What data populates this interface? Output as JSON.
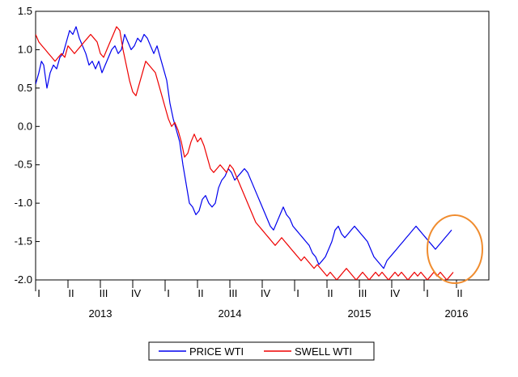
{
  "chart_data": {
    "type": "line",
    "title": "",
    "xlabel": "",
    "ylabel": "",
    "ylim": [
      -2.0,
      1.5
    ],
    "yticks": [
      "1.5",
      "1.0",
      "0.5",
      "0.0",
      "-0.5",
      "-1.0",
      "-1.5",
      "-2.0"
    ],
    "x_range": [
      "2013 Q1",
      "2016 Q2"
    ],
    "quarter_labels": [
      "I",
      "II",
      "III",
      "IV",
      "I",
      "II",
      "III",
      "IV",
      "I",
      "II",
      "III",
      "IV",
      "I",
      "II"
    ],
    "year_labels": [
      "2013",
      "2014",
      "2015",
      "2016"
    ],
    "grid": false,
    "legend_position": "bottom-center",
    "series": [
      {
        "name": "PRICE WTI",
        "color": "#0000ee",
        "x": [
          0.0,
          0.1,
          0.18,
          0.25,
          0.35,
          0.45,
          0.55,
          0.65,
          0.75,
          0.85,
          0.95,
          1.05,
          1.15,
          1.25,
          1.35,
          1.45,
          1.55,
          1.65,
          1.75,
          1.85,
          1.95,
          2.05,
          2.15,
          2.25,
          2.35,
          2.45,
          2.55,
          2.65,
          2.75,
          2.85,
          2.95,
          3.05,
          3.15,
          3.25,
          3.35,
          3.45,
          3.55,
          3.65,
          3.75,
          3.85,
          3.95,
          4.05,
          4.15,
          4.25,
          4.35,
          4.45,
          4.55,
          4.65,
          4.75,
          4.85,
          4.95,
          5.05,
          5.15,
          5.25,
          5.35,
          5.45,
          5.55,
          5.65,
          5.75,
          5.85,
          5.95,
          6.05,
          6.15,
          6.25,
          6.35,
          6.45,
          6.55,
          6.65,
          6.75,
          6.85,
          6.95,
          7.05,
          7.15,
          7.25,
          7.35,
          7.45,
          7.55,
          7.65,
          7.75,
          7.85,
          7.95,
          8.05,
          8.15,
          8.25,
          8.35,
          8.45,
          8.55,
          8.65,
          8.75,
          8.85,
          8.95,
          9.05,
          9.15,
          9.25,
          9.35,
          9.45,
          9.55,
          9.65,
          9.75,
          9.85,
          9.95,
          10.05,
          10.15,
          10.25,
          10.35,
          10.45,
          10.55,
          10.65,
          10.75,
          10.85,
          10.95,
          11.05,
          11.15,
          11.25,
          11.35,
          11.45,
          11.55,
          11.65,
          11.75,
          11.85,
          11.95,
          12.05,
          12.15,
          12.25,
          12.35,
          12.45,
          12.55,
          12.65,
          12.75,
          12.85
        ],
        "values": [
          0.55,
          0.7,
          0.85,
          0.8,
          0.5,
          0.7,
          0.8,
          0.75,
          0.9,
          0.95,
          1.1,
          1.25,
          1.2,
          1.3,
          1.15,
          1.05,
          0.95,
          0.8,
          0.85,
          0.75,
          0.85,
          0.7,
          0.8,
          0.9,
          1.0,
          1.05,
          0.95,
          1.0,
          1.2,
          1.1,
          1.0,
          1.05,
          1.15,
          1.1,
          1.2,
          1.15,
          1.05,
          0.95,
          1.05,
          0.9,
          0.75,
          0.6,
          0.3,
          0.1,
          -0.05,
          -0.2,
          -0.5,
          -0.75,
          -1.0,
          -1.05,
          -1.15,
          -1.1,
          -0.95,
          -0.9,
          -1.0,
          -1.05,
          -1.0,
          -0.8,
          -0.7,
          -0.65,
          -0.55,
          -0.6,
          -0.7,
          -0.65,
          -0.6,
          -0.55,
          -0.6,
          -0.7,
          -0.8,
          -0.9,
          -1.0,
          -1.1,
          -1.2,
          -1.3,
          -1.35,
          -1.25,
          -1.15,
          -1.05,
          -1.15,
          -1.2,
          -1.3,
          -1.35,
          -1.4,
          -1.45,
          -1.5,
          -1.55,
          -1.65,
          -1.7,
          -1.8,
          -1.75,
          -1.7,
          -1.6,
          -1.5,
          -1.35,
          -1.3,
          -1.4,
          -1.45,
          -1.4,
          -1.35,
          -1.3,
          -1.35,
          -1.4,
          -1.45,
          -1.5,
          -1.6,
          -1.7,
          -1.75,
          -1.8,
          -1.85,
          -1.75,
          -1.7,
          -1.65,
          -1.6,
          -1.55,
          -1.5,
          -1.45,
          -1.4,
          -1.35,
          -1.3,
          -1.35,
          -1.4,
          -1.45,
          -1.5,
          -1.55,
          -1.6,
          -1.55,
          -1.5,
          -1.45,
          -1.4,
          -1.35
        ],
        "values_note": "approximate trace read from the figure"
      },
      {
        "name": "SWELL WTI",
        "color": "#ee0000",
        "x": [
          0.0,
          0.1,
          0.2,
          0.3,
          0.4,
          0.5,
          0.6,
          0.7,
          0.8,
          0.9,
          1.0,
          1.1,
          1.2,
          1.3,
          1.4,
          1.5,
          1.6,
          1.7,
          1.8,
          1.9,
          2.0,
          2.1,
          2.2,
          2.3,
          2.4,
          2.5,
          2.6,
          2.7,
          2.8,
          2.9,
          3.0,
          3.1,
          3.2,
          3.3,
          3.4,
          3.5,
          3.6,
          3.7,
          3.8,
          3.9,
          4.0,
          4.1,
          4.2,
          4.3,
          4.4,
          4.5,
          4.6,
          4.7,
          4.8,
          4.9,
          5.0,
          5.1,
          5.2,
          5.3,
          5.4,
          5.5,
          5.6,
          5.7,
          5.8,
          5.9,
          6.0,
          6.1,
          6.2,
          6.3,
          6.4,
          6.5,
          6.6,
          6.7,
          6.8,
          6.9,
          7.0,
          7.1,
          7.2,
          7.3,
          7.4,
          7.5,
          7.6,
          7.7,
          7.8,
          7.9,
          8.0,
          8.1,
          8.2,
          8.3,
          8.4,
          8.5,
          8.6,
          8.7,
          8.8,
          8.9,
          9.0,
          9.1,
          9.2,
          9.3,
          9.4,
          9.5,
          9.6,
          9.7,
          9.8,
          9.9,
          10.0,
          10.1,
          10.2,
          10.3,
          10.4,
          10.5,
          10.6,
          10.7,
          10.8,
          10.9,
          11.0,
          11.1,
          11.2,
          11.3,
          11.4,
          11.5,
          11.6,
          11.7,
          11.8,
          11.9,
          12.0,
          12.1,
          12.2,
          12.3,
          12.4,
          12.5,
          12.6,
          12.7,
          12.8,
          12.9
        ],
        "values": [
          1.2,
          1.1,
          1.05,
          1.0,
          0.95,
          0.9,
          0.85,
          0.9,
          0.95,
          0.9,
          1.05,
          1.0,
          0.95,
          1.0,
          1.05,
          1.1,
          1.15,
          1.2,
          1.15,
          1.1,
          0.95,
          0.9,
          1.0,
          1.1,
          1.2,
          1.3,
          1.25,
          1.0,
          0.8,
          0.6,
          0.45,
          0.4,
          0.55,
          0.7,
          0.85,
          0.8,
          0.75,
          0.7,
          0.55,
          0.4,
          0.25,
          0.1,
          0.0,
          0.05,
          -0.05,
          -0.2,
          -0.4,
          -0.35,
          -0.2,
          -0.1,
          -0.2,
          -0.15,
          -0.25,
          -0.4,
          -0.55,
          -0.6,
          -0.55,
          -0.5,
          -0.55,
          -0.6,
          -0.5,
          -0.55,
          -0.65,
          -0.75,
          -0.85,
          -0.95,
          -1.05,
          -1.15,
          -1.25,
          -1.3,
          -1.35,
          -1.4,
          -1.45,
          -1.5,
          -1.55,
          -1.5,
          -1.45,
          -1.5,
          -1.55,
          -1.6,
          -1.65,
          -1.7,
          -1.75,
          -1.7,
          -1.75,
          -1.8,
          -1.85,
          -1.8,
          -1.85,
          -1.9,
          -1.95,
          -1.9,
          -1.95,
          -2.0,
          -1.95,
          -1.9,
          -1.85,
          -1.9,
          -1.95,
          -2.0,
          -1.95,
          -1.9,
          -1.95,
          -2.0,
          -1.95,
          -1.9,
          -1.95,
          -1.9,
          -1.95,
          -2.0,
          -1.95,
          -1.9,
          -1.95,
          -1.9,
          -1.95,
          -2.0,
          -1.95,
          -1.9,
          -1.95,
          -1.9,
          -1.95,
          -2.0,
          -1.95,
          -1.9,
          -1.95,
          -1.9,
          -1.95,
          -2.0,
          -1.95,
          -1.9
        ],
        "values_note": "approximate trace read from the figure"
      }
    ],
    "annotation": {
      "shape": "ellipse",
      "color": "#f08c2e",
      "description": "highlight around the final values"
    }
  },
  "legend": {
    "items": [
      {
        "label": "PRICE WTI",
        "color": "#0000ee"
      },
      {
        "label": "SWELL WTI",
        "color": "#ee0000"
      }
    ]
  }
}
